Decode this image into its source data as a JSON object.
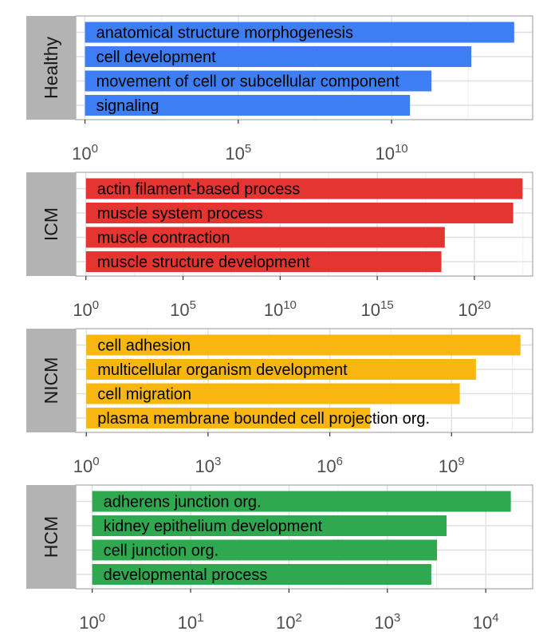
{
  "chart_data": [
    {
      "type": "bar",
      "orientation": "horizontal",
      "x_scale": "log10",
      "panel_label": "Healthy",
      "color": "#3d7ef5",
      "categories": [
        "anatomical structure morphogenesis",
        "cell development",
        "movement of cell or subcellular component",
        "signaling"
      ],
      "values": [
        100000000000000.0,
        4000000000000.0,
        200000000000.0,
        40000000000.0
      ],
      "xlim": [
        0.5,
        400000000000000.0
      ],
      "ticks": [
        {
          "base": "10",
          "exp": "0",
          "value": 1
        },
        {
          "base": "10",
          "exp": "5",
          "value": 100000.0
        },
        {
          "base": "10",
          "exp": "10",
          "value": 10000000000.0
        }
      ]
    },
    {
      "type": "bar",
      "orientation": "horizontal",
      "x_scale": "log10",
      "panel_label": "ICM",
      "color": "#e53530",
      "categories": [
        "actin filament-based process",
        "muscle system process",
        "muscle contraction",
        "muscle structure development"
      ],
      "values": [
        3e+22,
        1e+22,
        3e+18,
        2e+18
      ],
      "xlim": [
        0.3,
        1e+23
      ],
      "ticks": [
        {
          "base": "10",
          "exp": "0",
          "value": 1
        },
        {
          "base": "10",
          "exp": "5",
          "value": 100000.0
        },
        {
          "base": "10",
          "exp": "10",
          "value": 10000000000.0
        },
        {
          "base": "10",
          "exp": "15",
          "value": 1000000000000000.0
        },
        {
          "base": "10",
          "exp": "20",
          "value": 1e+20
        }
      ]
    },
    {
      "type": "bar",
      "orientation": "horizontal",
      "x_scale": "log10",
      "panel_label": "NICM",
      "color": "#f8b60e",
      "categories": [
        "cell adhesion",
        "multicellular organism development",
        "cell migration",
        "plasma membrane bounded cell projection org."
      ],
      "values": [
        50000000000.0,
        4000000000.0,
        1600000000.0,
        10000000.0
      ],
      "xlim": [
        0.55,
        100000000000.0
      ],
      "ticks": [
        {
          "base": "10",
          "exp": "0",
          "value": 1
        },
        {
          "base": "10",
          "exp": "3",
          "value": 1000
        },
        {
          "base": "10",
          "exp": "6",
          "value": 1000000.0
        },
        {
          "base": "10",
          "exp": "9",
          "value": 1000000000.0
        }
      ]
    },
    {
      "type": "bar",
      "orientation": "horizontal",
      "x_scale": "log10",
      "panel_label": "HCM",
      "color": "#2fa84f",
      "categories": [
        "adherens junction org.",
        "kidney epithelium development",
        "cell junction org.",
        "developmental process"
      ],
      "values": [
        18000,
        4000,
        3200,
        2800
      ],
      "xlim": [
        0.68,
        30000
      ],
      "ticks": [
        {
          "base": "10",
          "exp": "0",
          "value": 1
        },
        {
          "base": "10",
          "exp": "1",
          "value": 10
        },
        {
          "base": "10",
          "exp": "2",
          "value": 100
        },
        {
          "base": "10",
          "exp": "3",
          "value": 1000
        },
        {
          "base": "10",
          "exp": "4",
          "value": 10000
        }
      ]
    }
  ],
  "colors": {
    "strip_bg": "#b3b3b3",
    "panel_border": "#b3b3b3",
    "grid_major": "#e0e0e0",
    "grid_minor": "#efefef"
  }
}
